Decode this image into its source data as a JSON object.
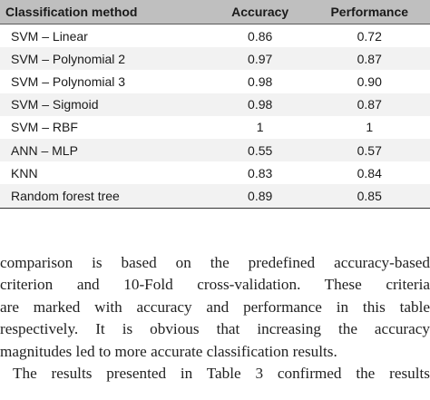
{
  "table": {
    "headers": {
      "method": "Classification method",
      "accuracy": "Accuracy",
      "performance": "Performance"
    },
    "rows": [
      {
        "method": "SVM – Linear",
        "accuracy": "0.86",
        "performance": "0.72"
      },
      {
        "method": "SVM – Polynomial 2",
        "accuracy": "0.97",
        "performance": "0.87"
      },
      {
        "method": "SVM – Polynomial 3",
        "accuracy": "0.98",
        "performance": "0.90"
      },
      {
        "method": "SVM – Sigmoid",
        "accuracy": "0.98",
        "performance": "0.87"
      },
      {
        "method": "SVM – RBF",
        "accuracy": "1",
        "performance": "1"
      },
      {
        "method": "ANN – MLP",
        "accuracy": "0.55",
        "performance": "0.57"
      },
      {
        "method": "KNN",
        "accuracy": "0.83",
        "performance": "0.84"
      },
      {
        "method": "Random forest tree",
        "accuracy": "0.89",
        "performance": "0.85"
      }
    ]
  },
  "paragraph": {
    "lines": [
      "comparison is based on the predefined accuracy-based",
      "criterion and 10-Fold cross-validation. These criteria",
      "are marked with accuracy and performance in this table",
      "respectively. It is obvious that increasing the accuracy",
      "magnitudes led to more accurate classification results."
    ],
    "next_line": "The results presented in Table 3 confirmed the results"
  }
}
